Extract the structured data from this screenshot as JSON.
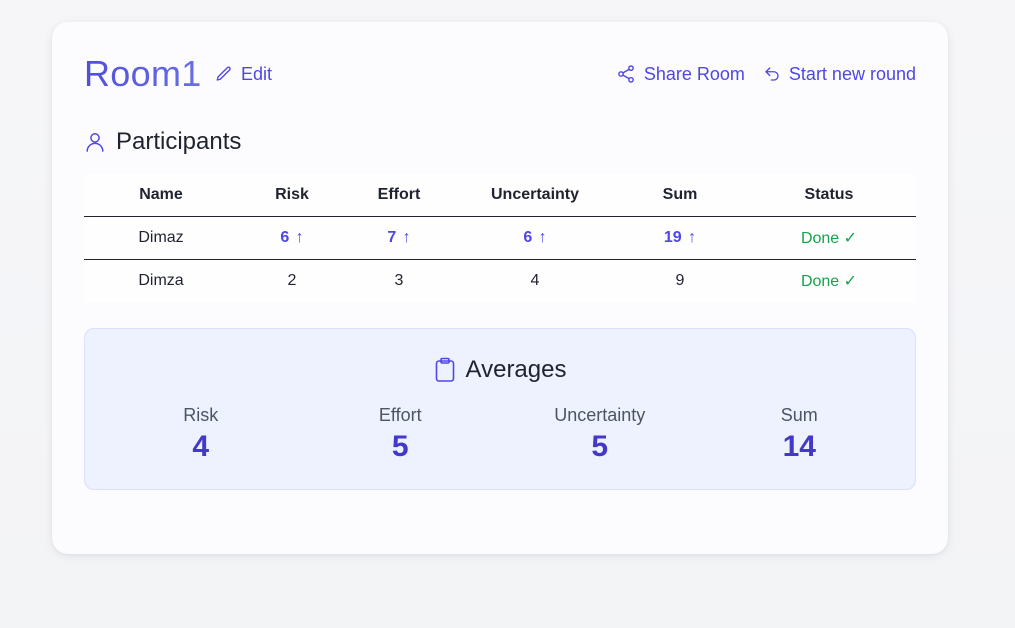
{
  "room": {
    "title": "Room1",
    "edit_label": "Edit"
  },
  "actions": {
    "share_label": "Share Room",
    "new_round_label": "Start new round"
  },
  "participants": {
    "title": "Participants",
    "columns": [
      "Name",
      "Risk",
      "Effort",
      "Uncertainty",
      "Sum",
      "Status"
    ],
    "rows": [
      {
        "name": "Dimaz",
        "risk": "6",
        "effort": "7",
        "uncertainty": "6",
        "sum": "19",
        "status": "Done ✓",
        "highlight": true,
        "arrow": "↑"
      },
      {
        "name": "Dimza",
        "risk": "2",
        "effort": "3",
        "uncertainty": "4",
        "sum": "9",
        "status": "Done ✓",
        "highlight": false
      }
    ]
  },
  "averages": {
    "title": "Averages",
    "items": [
      {
        "label": "Risk",
        "value": "4"
      },
      {
        "label": "Effort",
        "value": "5"
      },
      {
        "label": "Uncertainty",
        "value": "5"
      },
      {
        "label": "Sum",
        "value": "14"
      }
    ]
  },
  "colors": {
    "accent": "#4f46e5",
    "done": "#16a34a",
    "averages_bg": "#eef2fe"
  },
  "icons": {
    "edit": "pencil-icon",
    "share": "share-icon",
    "new_round": "undo-icon",
    "participants": "user-icon",
    "averages": "clipboard-icon"
  }
}
